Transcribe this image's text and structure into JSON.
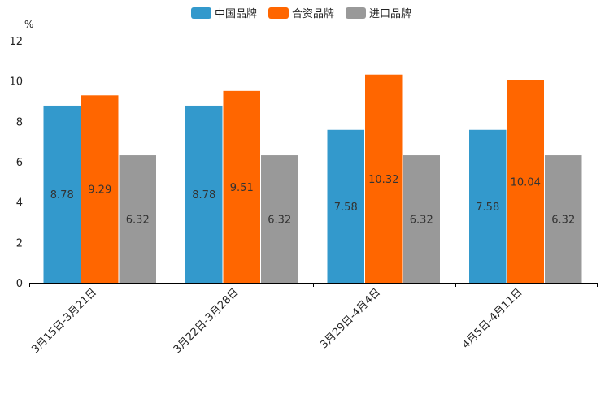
{
  "chart_data": {
    "type": "bar",
    "unit": "%",
    "categories": [
      "3月15日-3月21日",
      "3月22日-3月28日",
      "3月29日-4月4日",
      "4月5日-4月11日"
    ],
    "series": [
      {
        "name": "中国品牌",
        "color": "#3399cc",
        "values": [
          8.78,
          8.78,
          7.58,
          7.58
        ]
      },
      {
        "name": "合资品牌",
        "color": "#ff6600",
        "values": [
          9.29,
          9.51,
          10.32,
          10.04
        ]
      },
      {
        "name": "进口品牌",
        "color": "#999999",
        "values": [
          6.32,
          6.32,
          6.32,
          6.32
        ]
      }
    ],
    "ylim": [
      0,
      12
    ],
    "yticks": [
      0,
      2,
      4,
      6,
      8,
      10,
      12
    ],
    "legend_position": "top-center",
    "grid": false
  }
}
